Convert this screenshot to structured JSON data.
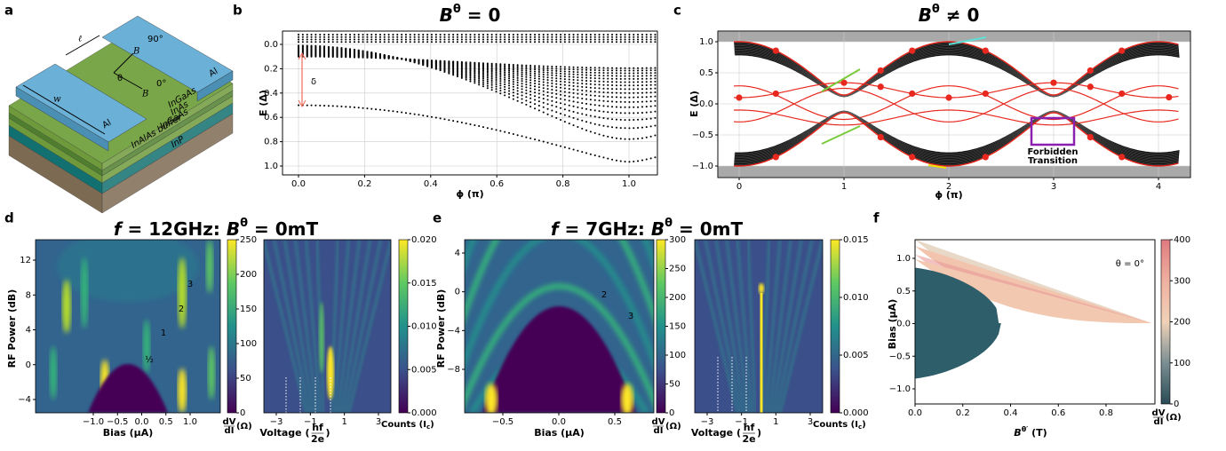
{
  "panels": {
    "a": {
      "label": "a",
      "length": "ℓ",
      "width": "w",
      "field_90": "B",
      "field_90_angle": "90°",
      "angle": "θ",
      "field_0": "B",
      "field_0_angle": "0°",
      "contact_left": "Al",
      "contact_right": "Al",
      "layers": [
        "InGaAs",
        "InAs",
        "InGaAs",
        "InAlAs buffer",
        "InP"
      ]
    },
    "b": {
      "label": "b",
      "title": {
        "symbol": "B",
        "superscript": "θ",
        "relation": " = 0"
      },
      "ylabel": "E (Δ)",
      "xlabel": "ϕ (π)",
      "xticks": [
        "0.0",
        0.2,
        0.4,
        0.6,
        0.8,
        "1.0"
      ],
      "yticks": [
        "0.0",
        0.2,
        0.4,
        0.6,
        0.8,
        "1.0"
      ],
      "annotation": "δ"
    },
    "c": {
      "label": "c",
      "title": {
        "symbol": "B",
        "superscript": "θ",
        "relation": " ≠ 0"
      },
      "ylabel": "E (Δ)",
      "xlabel": "ϕ (π)",
      "xticks": [
        0,
        1,
        2,
        3,
        4
      ],
      "yticks": [
        "1.0",
        0.5,
        "0.0",
        "−0.5",
        "−1.0"
      ],
      "annotation": [
        "Forbidden",
        "Transition"
      ]
    },
    "d": {
      "label": "d",
      "title": {
        "f": "f",
        "freq": " = 12GHz: ",
        "symbol": "B",
        "superscript": "θ",
        "relation": " = 0mT"
      },
      "map": {
        "ylabel": "RF Power (dB)",
        "xlabel": "Bias (μA)",
        "xticks": [
          "−1.0",
          "−0.5",
          "0.0",
          0.5,
          "1.0"
        ],
        "yticks": [
          12,
          8,
          4,
          0,
          "−4"
        ],
        "annotations": [
          "3",
          "2",
          "1",
          "½"
        ],
        "colorbar": {
          "ticks": [
            250,
            200,
            150,
            100,
            50,
            0
          ],
          "label": {
            "num": "dV",
            "den": "dI",
            "unit": "(Ω)"
          }
        }
      },
      "hist": {
        "xticks": [
          "−3",
          "−1",
          1,
          3
        ],
        "xlabel": {
          "text": "Voltage (",
          "num": "hf",
          "den": "2e",
          "close": ")"
        },
        "colorbar": {
          "ticks": [
            "0.020",
            0.015,
            "0.010",
            0.005,
            "0.000"
          ],
          "label": {
            "text": "Counts (I",
            "sub": "c",
            "close": ")"
          }
        }
      }
    },
    "e": {
      "label": "e",
      "title": {
        "f": "f",
        "freq": " = 7GHz: ",
        "symbol": "B",
        "superscript": "θ",
        "relation": " = 0mT"
      },
      "map": {
        "ylabel": "RF Power (dB)",
        "xlabel": "Bias (μA)",
        "xticks": [
          "−0.5",
          "0.0",
          0.5
        ],
        "yticks": [
          4,
          0,
          "−4",
          "−8"
        ],
        "annotations": [
          "2",
          "3"
        ],
        "colorbar": {
          "ticks": [
            300,
            250,
            200,
            150,
            100,
            50,
            0
          ],
          "label": {
            "num": "dV",
            "den": "dI",
            "unit": "(Ω)"
          }
        }
      },
      "hist": {
        "xticks": [
          "−3",
          "−1",
          1,
          3
        ],
        "xlabel": {
          "text": "Voltage (",
          "num": "hf",
          "den": "2e",
          "close": ")"
        },
        "colorbar": {
          "ticks": [
            0.015,
            "0.010",
            0.005,
            "0.000"
          ],
          "label": {
            "text": "Counts (I",
            "sub": "c",
            "close": ")"
          }
        }
      }
    },
    "f": {
      "label": "f",
      "ylabel": "Bias (μA)",
      "xlabel": {
        "symbol": "B",
        "superscript": "θ′",
        "unit": " (T)"
      },
      "xticks": [
        "0.0",
        0.2,
        0.4,
        0.6,
        0.8
      ],
      "yticks": [
        "1.0",
        0.5,
        "0.0",
        "−0.5",
        "−1.0"
      ],
      "annotation": "θ = 0°",
      "colorbar": {
        "ticks": [
          400,
          300,
          200,
          100,
          0
        ],
        "label": {
          "num": "dV",
          "den": "dI",
          "unit": "(Ω)"
        }
      }
    }
  }
}
